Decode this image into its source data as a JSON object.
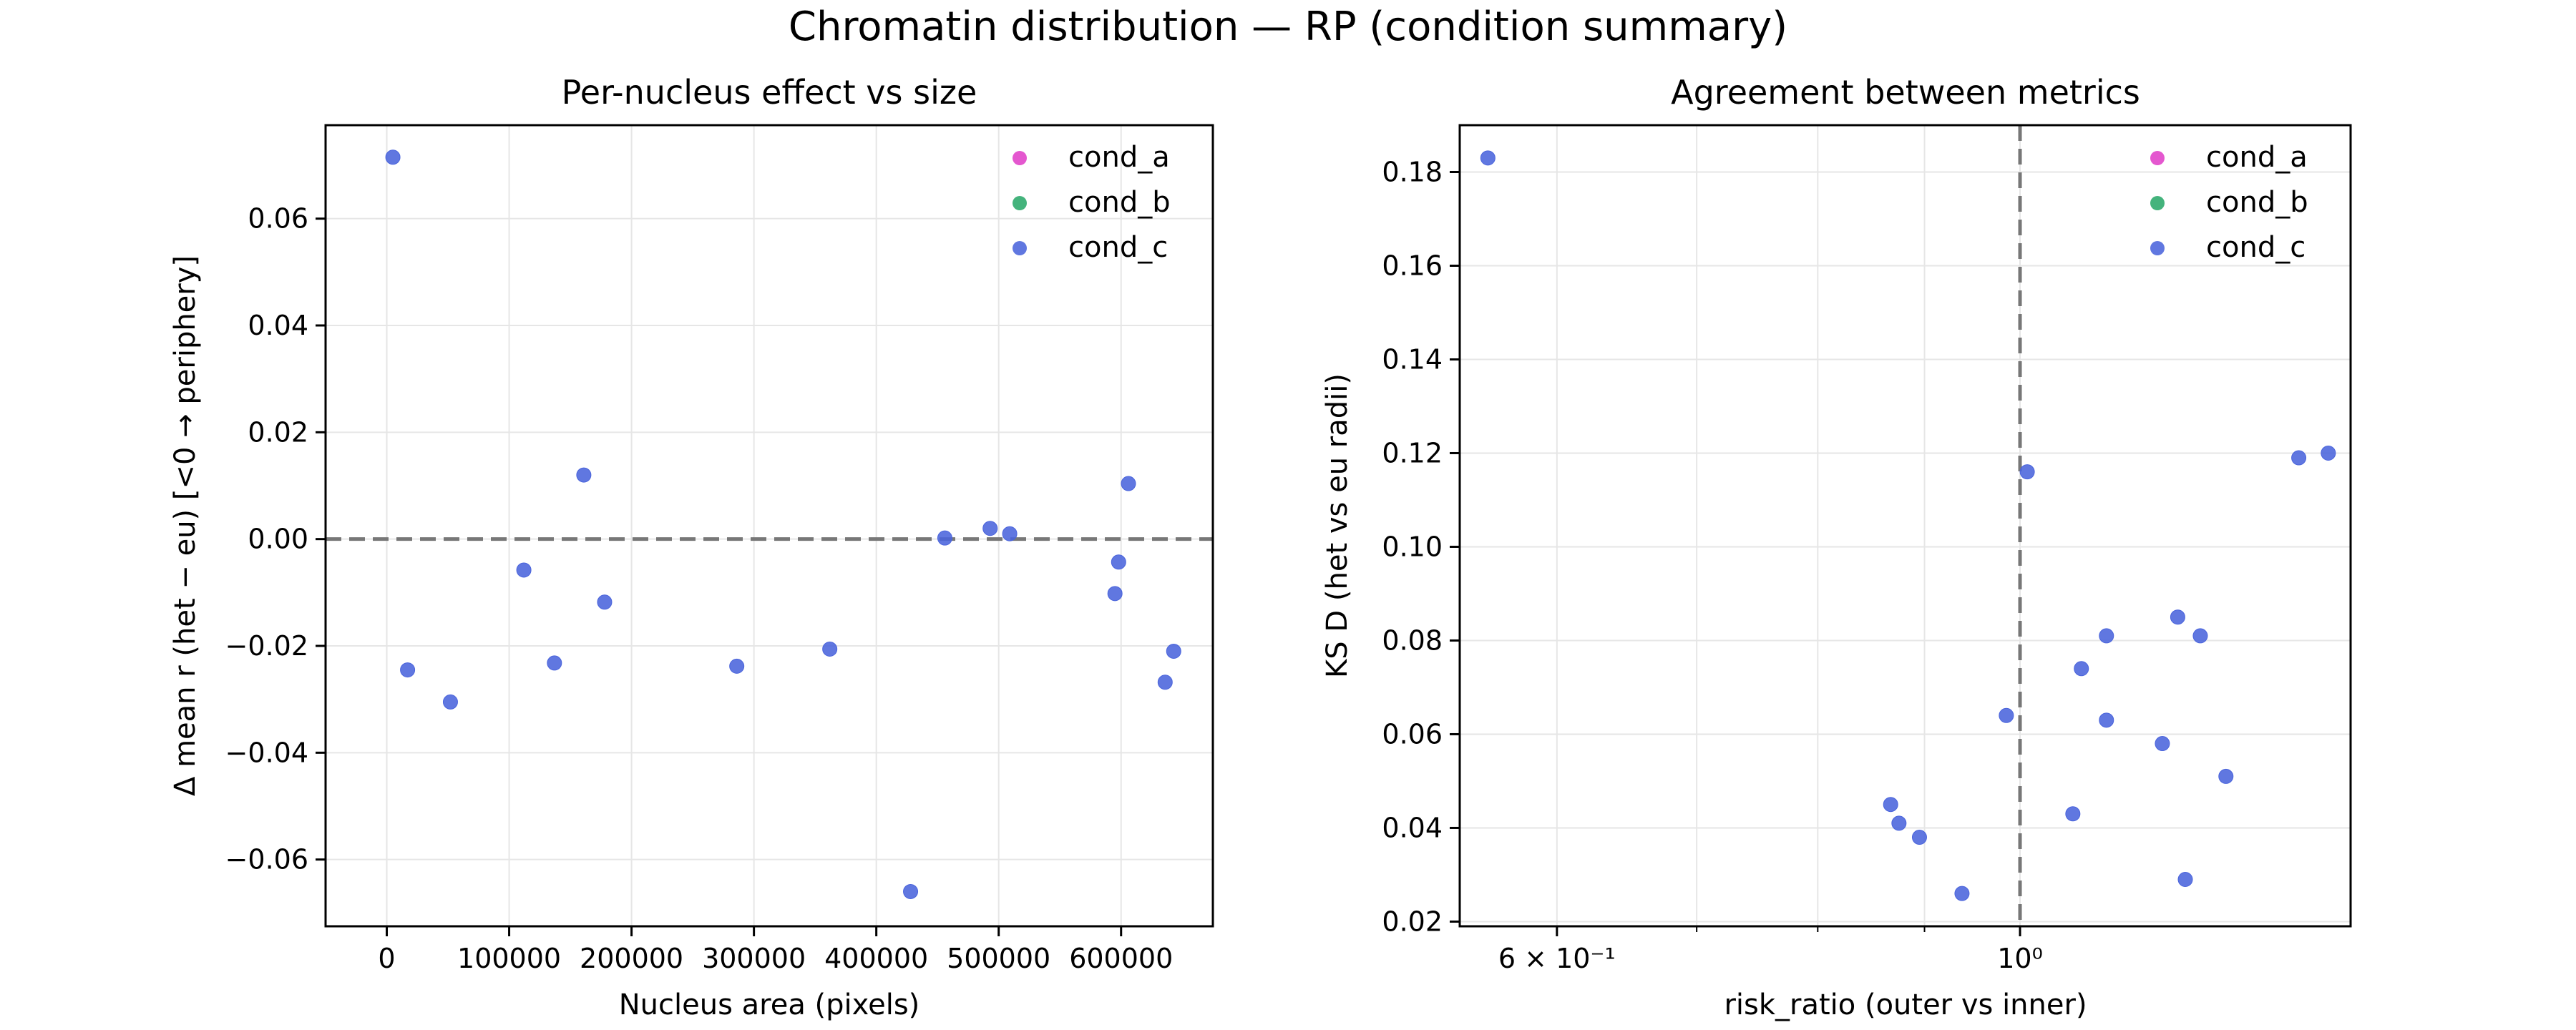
{
  "figure": {
    "title": "Chromatin distribution — RP (condition summary)"
  },
  "colors": {
    "cond_a": "#e040c8",
    "cond_b": "#2aa86a",
    "cond_c": "#4a64dc",
    "refline": "#777777"
  },
  "chart_data": [
    {
      "type": "scatter",
      "title": "Per-nucleus effect vs size",
      "xlabel": "Nucleus area (pixels)",
      "ylabel": "Δ mean r (het − eu)  [<0 → periphery]",
      "xlim": [
        -50000,
        675000
      ],
      "ylim": [
        -0.0725,
        0.0775
      ],
      "xticks": [
        0,
        100000,
        200000,
        300000,
        400000,
        500000,
        600000
      ],
      "xtick_labels": [
        "0",
        "100000",
        "200000",
        "300000",
        "400000",
        "500000",
        "600000"
      ],
      "yticks": [
        -0.06,
        -0.04,
        -0.02,
        0.0,
        0.02,
        0.04,
        0.06
      ],
      "ytick_labels": [
        "−0.06",
        "−0.04",
        "−0.02",
        "0.00",
        "0.02",
        "0.04",
        "0.06"
      ],
      "grid": true,
      "hline": 0,
      "legend": "top-right",
      "legend_entries": [
        "cond_a",
        "cond_b",
        "cond_c"
      ],
      "series": [
        {
          "name": "cond_a",
          "points": []
        },
        {
          "name": "cond_b",
          "points": []
        },
        {
          "name": "cond_c",
          "points": [
            [
              5000,
              0.0715
            ],
            [
              17000,
              -0.0245
            ],
            [
              52000,
              -0.0305
            ],
            [
              112000,
              -0.0058
            ],
            [
              137000,
              -0.0232
            ],
            [
              161000,
              0.012
            ],
            [
              178000,
              -0.0118
            ],
            [
              286000,
              -0.0238
            ],
            [
              362000,
              -0.0206
            ],
            [
              428000,
              -0.066
            ],
            [
              456000,
              0.0002
            ],
            [
              493000,
              0.002
            ],
            [
              509000,
              0.001
            ],
            [
              595000,
              -0.0102
            ],
            [
              598000,
              -0.0043
            ],
            [
              606000,
              0.0104
            ],
            [
              636000,
              -0.0268
            ],
            [
              643000,
              -0.021
            ]
          ]
        }
      ]
    },
    {
      "type": "scatter",
      "title": "Agreement between metrics",
      "xlabel": "risk_ratio (outer vs inner)",
      "ylabel": "KS D (het vs eu radii)",
      "xscale": "log",
      "xlim": [
        0.539,
        1.44
      ],
      "ylim": [
        0.019,
        0.19
      ],
      "xticks": [
        0.6,
        1.0
      ],
      "xtick_labels": [
        "6 × 10⁻¹",
        "10⁰"
      ],
      "minor_xticks": [
        0.7,
        0.8,
        0.9
      ],
      "yticks": [
        0.02,
        0.04,
        0.06,
        0.08,
        0.1,
        0.12,
        0.14,
        0.16,
        0.18
      ],
      "ytick_labels": [
        "0.02",
        "0.04",
        "0.06",
        "0.08",
        "0.10",
        "0.12",
        "0.14",
        "0.16",
        "0.18"
      ],
      "grid": true,
      "vline": 1.0,
      "legend": "top-right",
      "legend_entries": [
        "cond_a",
        "cond_b",
        "cond_c"
      ],
      "series": [
        {
          "name": "cond_a",
          "points": []
        },
        {
          "name": "cond_b",
          "points": []
        },
        {
          "name": "cond_c",
          "points": [
            [
              0.556,
              0.183
            ],
            [
              0.867,
              0.045
            ],
            [
              0.875,
              0.041
            ],
            [
              0.895,
              0.038
            ],
            [
              0.938,
              0.026
            ],
            [
              0.985,
              0.064
            ],
            [
              1.008,
              0.116
            ],
            [
              1.06,
              0.043
            ],
            [
              1.07,
              0.074
            ],
            [
              1.1,
              0.081
            ],
            [
              1.1,
              0.063
            ],
            [
              1.17,
              0.058
            ],
            [
              1.19,
              0.085
            ],
            [
              1.2,
              0.029
            ],
            [
              1.22,
              0.081
            ],
            [
              1.255,
              0.051
            ],
            [
              1.36,
              0.119
            ],
            [
              1.405,
              0.12
            ]
          ]
        }
      ]
    }
  ]
}
